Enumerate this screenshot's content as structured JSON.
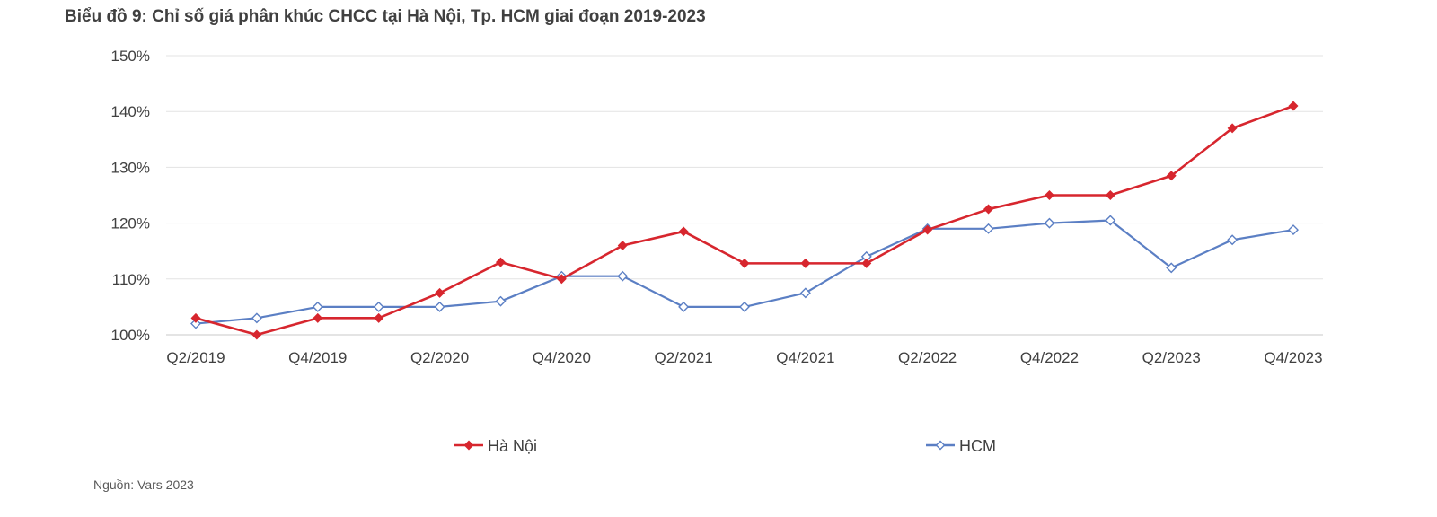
{
  "chart_data": {
    "type": "line",
    "title": "Biểu đồ 9: Chỉ số giá phân khúc CHCC tại Hà Nội, Tp. HCM giai đoạn 2019-2023",
    "xlabel": "",
    "ylabel": "",
    "x": [
      "Q2/2019",
      "Q3/2019",
      "Q4/2019",
      "Q1/2020",
      "Q2/2020",
      "Q3/2020",
      "Q4/2020",
      "Q1/2021",
      "Q2/2021",
      "Q3/2021",
      "Q4/2021",
      "Q1/2022",
      "Q2/2022",
      "Q3/2022",
      "Q4/2022",
      "Q1/2023",
      "Q2/2023",
      "Q3/2023",
      "Q4/2023"
    ],
    "x_tick_labels": [
      "Q2/2019",
      "Q4/2019",
      "Q2/2020",
      "Q4/2020",
      "Q2/2021",
      "Q4/2021",
      "Q2/2022",
      "Q4/2022",
      "Q2/2023",
      "Q4/2023"
    ],
    "y_tick_labels": [
      "100%",
      "110%",
      "120%",
      "130%",
      "140%",
      "150%"
    ],
    "ylim": [
      100,
      150
    ],
    "y_ticks": [
      100,
      110,
      120,
      130,
      140,
      150
    ],
    "grid": true,
    "legend_position": "bottom",
    "series": [
      {
        "name": "Hà Nội",
        "color": "#D7262E",
        "marker": "diamond-filled",
        "values": [
          103,
          100,
          103,
          103,
          107.5,
          113,
          110,
          116,
          118.5,
          112.8,
          112.8,
          112.8,
          118.8,
          122.5,
          125,
          125,
          128.5,
          137,
          141
        ]
      },
      {
        "name": "HCM",
        "color": "#5B7FC4",
        "marker": "diamond-open",
        "values": [
          102,
          103,
          105,
          105,
          105,
          106,
          110.5,
          110.5,
          105,
          105,
          107.5,
          114,
          119,
          119,
          120,
          120.5,
          112,
          117,
          118.8
        ]
      }
    ]
  },
  "source": "Nguồn: Vars 2023"
}
